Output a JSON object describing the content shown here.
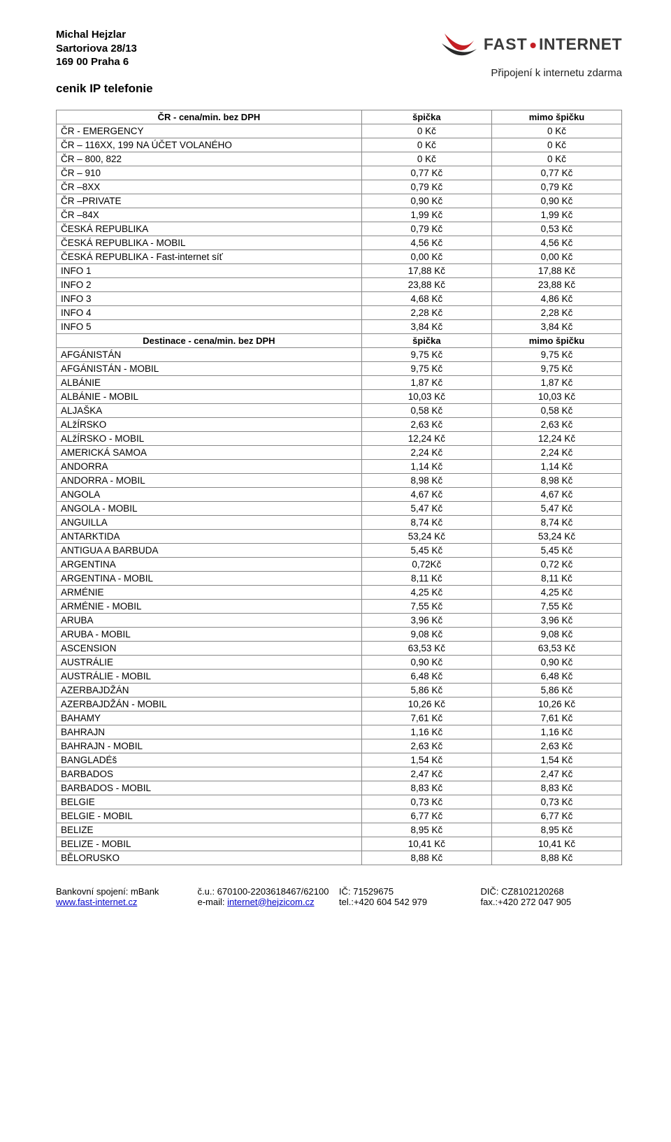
{
  "header": {
    "name": "Michal Hejzlar",
    "street": "Sartoriova 28/13",
    "city": "169 00 Praha 6",
    "title": "cenik IP  telefonie"
  },
  "brand": {
    "fast": "FAST",
    "dot": "•",
    "internet": "INTERNET",
    "tagline": "Připojení k internetu zdarma",
    "swoosh_colors": {
      "red": "#c41e24",
      "dark": "#2a2a2a"
    }
  },
  "section1": {
    "label": "ČR - cena/min. bez DPH",
    "col1": "špička",
    "col2": "mimo špičku"
  },
  "section2": {
    "label": "Destinace - cena/min. bez DPH",
    "col1": "špička",
    "col2": "mimo špičku"
  },
  "rows1": [
    {
      "label": "ČR - EMERGENCY",
      "v1": "0 Kč",
      "v2": "0 Kč"
    },
    {
      "label": "ČR – 116XX, 199 NA ÚČET VOLANÉHO",
      "v1": "0 Kč",
      "v2": "0 Kč"
    },
    {
      "label": "ČR – 800, 822",
      "v1": "0 Kč",
      "v2": "0 Kč"
    },
    {
      "label": "ČR – 910",
      "v1": "0,77 Kč",
      "v2": "0,77 Kč"
    },
    {
      "label": "ČR –8XX",
      "v1": "0,79 Kč",
      "v2": "0,79 Kč"
    },
    {
      "label": "ČR –PRIVATE",
      "v1": "0,90 Kč",
      "v2": "0,90 Kč"
    },
    {
      "label": "ČR –84X",
      "v1": "1,99 Kč",
      "v2": "1,99 Kč"
    },
    {
      "label": "ČESKÁ REPUBLIKA",
      "v1": "0,79 Kč",
      "v2": "0,53 Kč"
    },
    {
      "label": "ČESKÁ REPUBLIKA - MOBIL",
      "v1": "4,56 Kč",
      "v2": "4,56 Kč"
    },
    {
      "label": "ČESKÁ REPUBLIKA - Fast-internet síť",
      "v1": "0,00 Kč",
      "v2": "0,00 Kč"
    },
    {
      "label": "INFO 1",
      "v1": "17,88 Kč",
      "v2": "17,88 Kč"
    },
    {
      "label": "INFO 2",
      "v1": "23,88 Kč",
      "v2": "23,88 Kč"
    },
    {
      "label": "INFO 3",
      "v1": "4,68 Kč",
      "v2": "4,86 Kč"
    },
    {
      "label": "INFO 4",
      "v1": "2,28 Kč",
      "v2": "2,28 Kč"
    },
    {
      "label": "INFO 5",
      "v1": "3,84 Kč",
      "v2": "3,84 Kč"
    }
  ],
  "rows2": [
    {
      "label": "AFGÁNISTÁN",
      "v1": "9,75 Kč",
      "v2": "9,75 Kč"
    },
    {
      "label": "AFGÁNISTÁN - MOBIL",
      "v1": "9,75 Kč",
      "v2": "9,75 Kč"
    },
    {
      "label": "ALBÁNIE",
      "v1": "1,87 Kč",
      "v2": "1,87 Kč"
    },
    {
      "label": "ALBÁNIE - MOBIL",
      "v1": "10,03 Kč",
      "v2": "10,03 Kč"
    },
    {
      "label": "ALJAŠKA",
      "v1": "0,58 Kč",
      "v2": "0,58 Kč"
    },
    {
      "label": "ALžÍRSKO",
      "v1": "2,63 Kč",
      "v2": "2,63 Kč"
    },
    {
      "label": "ALžÍRSKO - MOBIL",
      "v1": "12,24 Kč",
      "v2": "12,24 Kč"
    },
    {
      "label": "AMERICKÁ SAMOA",
      "v1": "2,24 Kč",
      "v2": "2,24 Kč"
    },
    {
      "label": "ANDORRA",
      "v1": "1,14 Kč",
      "v2": "1,14 Kč"
    },
    {
      "label": "ANDORRA - MOBIL",
      "v1": "8,98 Kč",
      "v2": "8,98 Kč"
    },
    {
      "label": "ANGOLA",
      "v1": "4,67 Kč",
      "v2": "4,67 Kč"
    },
    {
      "label": "ANGOLA - MOBIL",
      "v1": "5,47 Kč",
      "v2": "5,47 Kč"
    },
    {
      "label": "ANGUILLA",
      "v1": "8,74 Kč",
      "v2": "8,74 Kč"
    },
    {
      "label": "ANTARKTIDA",
      "v1": "53,24 Kč",
      "v2": "53,24 Kč"
    },
    {
      "label": "ANTIGUA A BARBUDA",
      "v1": "5,45 Kč",
      "v2": "5,45 Kč"
    },
    {
      "label": "ARGENTINA",
      "v1": "0,72Kč",
      "v2": "0,72 Kč"
    },
    {
      "label": "ARGENTINA - MOBIL",
      "v1": "8,11 Kč",
      "v2": "8,11 Kč"
    },
    {
      "label": "ARMÉNIE",
      "v1": "4,25 Kč",
      "v2": "4,25 Kč"
    },
    {
      "label": "ARMÉNIE - MOBIL",
      "v1": "7,55 Kč",
      "v2": "7,55 Kč"
    },
    {
      "label": "ARUBA",
      "v1": "3,96 Kč",
      "v2": "3,96 Kč"
    },
    {
      "label": "ARUBA - MOBIL",
      "v1": "9,08 Kč",
      "v2": "9,08 Kč"
    },
    {
      "label": "ASCENSION",
      "v1": "63,53 Kč",
      "v2": "63,53 Kč"
    },
    {
      "label": "AUSTRÁLIE",
      "v1": "0,90 Kč",
      "v2": "0,90 Kč"
    },
    {
      "label": "AUSTRÁLIE - MOBIL",
      "v1": "6,48 Kč",
      "v2": "6,48 Kč"
    },
    {
      "label": "AZERBAJDŽÁN",
      "v1": "5,86 Kč",
      "v2": "5,86 Kč"
    },
    {
      "label": "AZERBAJDŽÁN - MOBIL",
      "v1": "10,26 Kč",
      "v2": "10,26 Kč"
    },
    {
      "label": "BAHAMY",
      "v1": "7,61 Kč",
      "v2": "7,61 Kč"
    },
    {
      "label": "BAHRAJN",
      "v1": "1,16 Kč",
      "v2": "1,16 Kč"
    },
    {
      "label": "BAHRAJN - MOBIL",
      "v1": "2,63 Kč",
      "v2": "2,63 Kč"
    },
    {
      "label": "BANGLADÉš",
      "v1": "1,54 Kč",
      "v2": "1,54 Kč"
    },
    {
      "label": "BARBADOS",
      "v1": "2,47 Kč",
      "v2": "2,47 Kč"
    },
    {
      "label": "BARBADOS - MOBIL",
      "v1": "8,83 Kč",
      "v2": "8,83 Kč"
    },
    {
      "label": "BELGIE",
      "v1": "0,73 Kč",
      "v2": "0,73 Kč"
    },
    {
      "label": "BELGIE - MOBIL",
      "v1": "6,77 Kč",
      "v2": "6,77 Kč"
    },
    {
      "label": "BELIZE",
      "v1": "8,95 Kč",
      "v2": "8,95 Kč"
    },
    {
      "label": "BELIZE - MOBIL",
      "v1": "10,41 Kč",
      "v2": "10,41 Kč"
    },
    {
      "label": "BĚLORUSKO",
      "v1": "8,88 Kč",
      "v2": "8,88 Kč"
    }
  ],
  "footer": {
    "bank_label": "Bankovní spojení: mBank",
    "url": "www.fast-internet.cz",
    "cu_label": "č.u.: 670100-2203618467/62100",
    "email_label": "e-mail: ",
    "email": "internet@hejzicom.cz",
    "ic": "IČ: 71529675",
    "tel": "tel.:+420 604 542 979",
    "dic": "DIČ: CZ8102120268",
    "fax": "fax.:+420 272 047 905"
  }
}
